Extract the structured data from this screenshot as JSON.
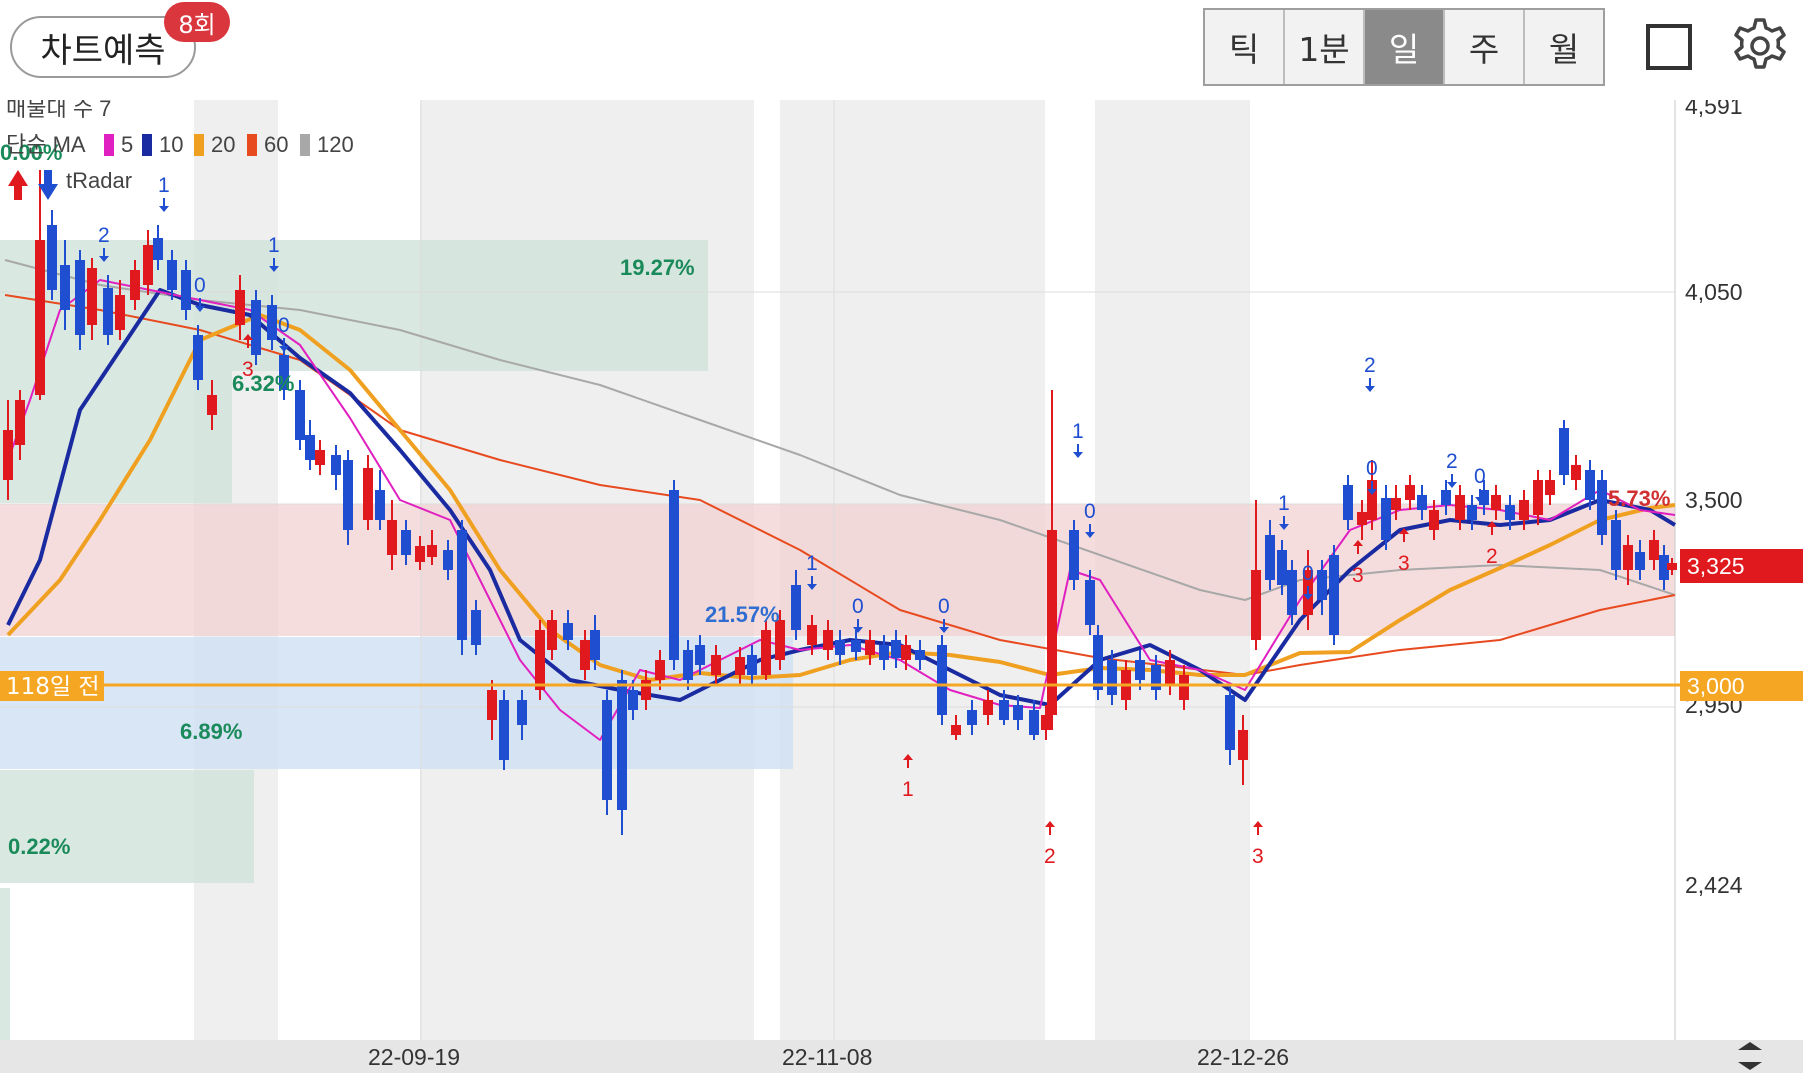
{
  "header": {
    "predict_label": "차트예측",
    "predict_badge": "8회",
    "period_tabs": [
      {
        "label": "틱",
        "active": false
      },
      {
        "label": "1분",
        "active": false
      },
      {
        "label": "일",
        "active": true
      },
      {
        "label": "주",
        "active": false
      },
      {
        "label": "월",
        "active": false
      }
    ],
    "icons": {
      "layout": "square-outline-icon",
      "settings": "gear-icon"
    }
  },
  "legend": {
    "volume_profile": "매물대 수 7",
    "ma_prefix": "단순 MA",
    "ma_items": [
      {
        "label": "5",
        "color": "#e020c0"
      },
      {
        "label": "10",
        "color": "#1a2aa0"
      },
      {
        "label": "20",
        "color": "#f0a020"
      },
      {
        "label": "60",
        "color": "#e84a20"
      },
      {
        "label": "120",
        "color": "#a8a8a8"
      }
    ],
    "tradar": "tRadar"
  },
  "chart_data": {
    "type": "candlestick",
    "y_axis_ticks": [
      "4,591",
      "4,050",
      "3,500",
      "2,950",
      "2,424"
    ],
    "x_axis_ticks": [
      "22-09-19",
      "22-11-08",
      "22-12-26"
    ],
    "current_price": "3,325",
    "reference_line": {
      "label": "118일 전",
      "price": "3,000"
    },
    "zone_percents": [
      "19.27%",
      "6.32%",
      "21.57%",
      "6.89%",
      "0.22%",
      "5.73%",
      "0.00%"
    ],
    "signals": [
      "1",
      "2",
      "1",
      "0",
      "0",
      "3",
      "1",
      "0",
      "0",
      "1",
      "1",
      "0",
      "2",
      "3",
      "1",
      "0",
      "2",
      "0",
      "2",
      "3",
      "0",
      "3",
      "2"
    ],
    "colors": {
      "up": "#e0191f",
      "down": "#1f4fd0",
      "price_tag": "#e0191f",
      "reference": "#f5a623"
    }
  }
}
